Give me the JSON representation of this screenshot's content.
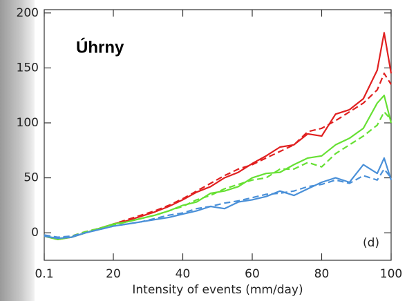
{
  "chart_data": {
    "type": "line",
    "title": "Úhrny",
    "annotation": "(d)",
    "x_label": "Intensity of events (mm/day)",
    "x": [
      0.1,
      4,
      8,
      12,
      16,
      20,
      24,
      28,
      32,
      36,
      40,
      44,
      48,
      52,
      56,
      60,
      64,
      68,
      72,
      76,
      80,
      84,
      88,
      92,
      96,
      98,
      100
    ],
    "series": [
      {
        "color": "#e02020",
        "dash": false,
        "values": [
          -3,
          -6,
          -4,
          0,
          4,
          8,
          11,
          15,
          19,
          24,
          30,
          37,
          42,
          50,
          55,
          63,
          70,
          78,
          80,
          90,
          88,
          108,
          112,
          122,
          148,
          182,
          145
        ]
      },
      {
        "color": "#e02020",
        "dash": true,
        "values": [
          -2,
          -5,
          -3,
          1,
          4,
          8,
          12,
          16,
          20,
          25,
          31,
          38,
          45,
          52,
          58,
          62,
          68,
          74,
          80,
          92,
          95,
          102,
          110,
          118,
          130,
          145,
          135
        ]
      },
      {
        "color": "#66e033",
        "dash": false,
        "values": [
          -3,
          -6,
          -4,
          0,
          4,
          8,
          10,
          13,
          16,
          20,
          25,
          28,
          36,
          38,
          42,
          50,
          54,
          55,
          62,
          68,
          70,
          80,
          86,
          95,
          118,
          125,
          100
        ]
      },
      {
        "color": "#66e033",
        "dash": true,
        "values": [
          -2,
          -5,
          -3,
          1,
          4,
          7,
          10,
          13,
          16,
          20,
          24,
          30,
          34,
          40,
          44,
          48,
          50,
          58,
          58,
          64,
          60,
          72,
          80,
          88,
          98,
          110,
          103
        ]
      },
      {
        "color": "#4a90d8",
        "dash": false,
        "values": [
          -3,
          -5,
          -4,
          0,
          3,
          6,
          8,
          10,
          12,
          14,
          17,
          20,
          24,
          22,
          28,
          30,
          33,
          38,
          34,
          40,
          46,
          50,
          46,
          62,
          54,
          68,
          48
        ]
      },
      {
        "color": "#4a90d8",
        "dash": true,
        "values": [
          -2,
          -4,
          -3,
          0,
          3,
          6,
          8,
          10,
          13,
          16,
          18,
          22,
          24,
          27,
          29,
          32,
          35,
          36,
          38,
          42,
          44,
          48,
          45,
          52,
          48,
          58,
          50
        ]
      }
    ],
    "xlim": [
      0.1,
      100
    ],
    "xticks": [
      0.1,
      20,
      40,
      60,
      80,
      100
    ],
    "ylim": [
      -25,
      203
    ],
    "yticks": [
      0,
      50,
      100,
      150,
      200
    ]
  }
}
